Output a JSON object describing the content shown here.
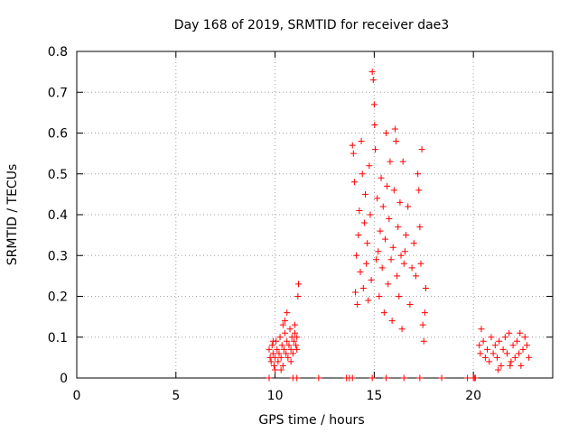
{
  "chart_data": {
    "type": "scatter",
    "title": "Day 168 of 2019, SRMTID for receiver dae3",
    "xlabel": "GPS time / hours",
    "ylabel": "SRMTID / TECUs",
    "xlim": [
      0,
      24
    ],
    "ylim": [
      0,
      0.8
    ],
    "x_ticks": [
      {
        "value": 0,
        "label": "0"
      },
      {
        "value": 5,
        "label": "5"
      },
      {
        "value": 10,
        "label": "10"
      },
      {
        "value": 15,
        "label": "15"
      },
      {
        "value": 20,
        "label": "20"
      }
    ],
    "y_ticks": [
      {
        "value": 0,
        "label": "0"
      },
      {
        "value": 0.1,
        "label": "0.1"
      },
      {
        "value": 0.2,
        "label": "0.2"
      },
      {
        "value": 0.3,
        "label": "0.3"
      },
      {
        "value": 0.4,
        "label": "0.4"
      },
      {
        "value": 0.5,
        "label": "0.5"
      },
      {
        "value": 0.6,
        "label": "0.6"
      },
      {
        "value": 0.7,
        "label": "0.7"
      },
      {
        "value": 0.8,
        "label": "0.8"
      }
    ],
    "grid": true,
    "marker": "+",
    "marker_color": "#ff0000",
    "series": [
      {
        "name": "SRMTID",
        "points": [
          [
            9.7,
            0.07
          ],
          [
            9.75,
            0.05
          ],
          [
            9.8,
            0.04
          ],
          [
            9.85,
            0.08
          ],
          [
            9.9,
            0.06
          ],
          [
            9.95,
            0.03
          ],
          [
            10.0,
            0.05
          ],
          [
            10.05,
            0.09
          ],
          [
            10.1,
            0.07
          ],
          [
            10.15,
            0.04
          ],
          [
            10.2,
            0.06
          ],
          [
            10.25,
            0.1
          ],
          [
            10.3,
            0.05
          ],
          [
            10.35,
            0.08
          ],
          [
            10.4,
            0.03
          ],
          [
            10.45,
            0.07
          ],
          [
            10.5,
            0.11
          ],
          [
            10.55,
            0.06
          ],
          [
            10.6,
            0.09
          ],
          [
            10.65,
            0.05
          ],
          [
            10.7,
            0.08
          ],
          [
            10.75,
            0.12
          ],
          [
            10.8,
            0.07
          ],
          [
            10.85,
            0.1
          ],
          [
            10.9,
            0.06
          ],
          [
            10.95,
            0.09
          ],
          [
            11.0,
            0.11
          ],
          [
            11.05,
            0.08
          ],
          [
            11.1,
            0.1
          ],
          [
            11.15,
            0.2
          ],
          [
            11.18,
            0.23
          ],
          [
            10.6,
            0.16
          ],
          [
            10.4,
            0.13
          ],
          [
            9.9,
            0.09
          ],
          [
            10.3,
            0.02
          ],
          [
            11.1,
            0.07
          ],
          [
            10.8,
            0.04
          ],
          [
            10.0,
            0.02
          ],
          [
            11.0,
            0.13
          ],
          [
            10.5,
            0.14
          ],
          [
            13.9,
            0.57
          ],
          [
            13.95,
            0.55
          ],
          [
            14.0,
            0.48
          ],
          [
            14.05,
            0.21
          ],
          [
            14.1,
            0.3
          ],
          [
            14.15,
            0.18
          ],
          [
            14.2,
            0.35
          ],
          [
            14.25,
            0.41
          ],
          [
            14.3,
            0.26
          ],
          [
            14.35,
            0.58
          ],
          [
            14.4,
            0.5
          ],
          [
            14.45,
            0.22
          ],
          [
            14.5,
            0.38
          ],
          [
            14.55,
            0.45
          ],
          [
            14.6,
            0.28
          ],
          [
            14.65,
            0.33
          ],
          [
            14.7,
            0.19
          ],
          [
            14.75,
            0.52
          ],
          [
            14.8,
            0.4
          ],
          [
            14.85,
            0.24
          ],
          [
            14.9,
            0.75
          ],
          [
            14.95,
            0.73
          ],
          [
            15.0,
            0.67
          ],
          [
            15.02,
            0.62
          ],
          [
            15.05,
            0.56
          ],
          [
            15.1,
            0.29
          ],
          [
            15.15,
            0.44
          ],
          [
            15.2,
            0.31
          ],
          [
            15.25,
            0.2
          ],
          [
            15.3,
            0.36
          ],
          [
            15.35,
            0.49
          ],
          [
            15.4,
            0.27
          ],
          [
            15.45,
            0.42
          ],
          [
            15.5,
            0.16
          ],
          [
            15.55,
            0.34
          ],
          [
            15.6,
            0.6
          ],
          [
            15.65,
            0.47
          ],
          [
            15.7,
            0.23
          ],
          [
            15.75,
            0.39
          ],
          [
            15.8,
            0.53
          ],
          [
            15.85,
            0.29
          ],
          [
            15.9,
            0.14
          ],
          [
            15.95,
            0.32
          ],
          [
            16.0,
            0.46
          ],
          [
            16.05,
            0.61
          ],
          [
            16.1,
            0.58
          ],
          [
            16.15,
            0.25
          ],
          [
            16.2,
            0.37
          ],
          [
            16.25,
            0.2
          ],
          [
            16.3,
            0.43
          ],
          [
            16.35,
            0.3
          ],
          [
            16.4,
            0.12
          ],
          [
            16.5,
            0.28
          ],
          [
            16.6,
            0.35
          ],
          [
            16.7,
            0.42
          ],
          [
            16.8,
            0.18
          ],
          [
            16.9,
            0.27
          ],
          [
            17.0,
            0.33
          ],
          [
            17.1,
            0.25
          ],
          [
            17.2,
            0.5
          ],
          [
            17.25,
            0.46
          ],
          [
            17.3,
            0.37
          ],
          [
            17.35,
            0.28
          ],
          [
            17.4,
            0.56
          ],
          [
            17.45,
            0.13
          ],
          [
            17.5,
            0.09
          ],
          [
            17.55,
            0.16
          ],
          [
            17.6,
            0.22
          ],
          [
            16.45,
            0.53
          ],
          [
            16.55,
            0.31
          ],
          [
            20.3,
            0.08
          ],
          [
            20.35,
            0.06
          ],
          [
            20.4,
            0.12
          ],
          [
            20.5,
            0.09
          ],
          [
            20.6,
            0.05
          ],
          [
            20.7,
            0.07
          ],
          [
            20.8,
            0.04
          ],
          [
            20.9,
            0.1
          ],
          [
            21.0,
            0.06
          ],
          [
            21.1,
            0.08
          ],
          [
            21.2,
            0.05
          ],
          [
            21.3,
            0.09
          ],
          [
            21.4,
            0.03
          ],
          [
            21.5,
            0.07
          ],
          [
            21.6,
            0.1
          ],
          [
            21.7,
            0.06
          ],
          [
            21.8,
            0.11
          ],
          [
            21.9,
            0.04
          ],
          [
            22.0,
            0.08
          ],
          [
            22.1,
            0.05
          ],
          [
            22.2,
            0.09
          ],
          [
            22.3,
            0.06
          ],
          [
            22.4,
            0.03
          ],
          [
            22.5,
            0.07
          ],
          [
            22.6,
            0.1
          ],
          [
            22.7,
            0.08
          ],
          [
            22.8,
            0.05
          ],
          [
            21.25,
            0.02
          ],
          [
            21.85,
            0.03
          ],
          [
            22.35,
            0.11
          ],
          [
            9.7,
            0.0
          ],
          [
            10.9,
            0.0
          ],
          [
            11.1,
            0.0
          ],
          [
            12.2,
            0.0
          ],
          [
            13.6,
            0.0
          ],
          [
            13.75,
            0.0
          ],
          [
            13.9,
            0.0
          ],
          [
            14.9,
            0.0
          ],
          [
            15.6,
            0.0
          ],
          [
            16.5,
            0.0
          ],
          [
            17.3,
            0.0
          ],
          [
            18.4,
            0.0
          ],
          [
            19.7,
            0.0
          ],
          [
            20.0,
            0.0
          ],
          [
            20.05,
            0.0
          ],
          [
            20.1,
            0.0
          ]
        ]
      }
    ]
  }
}
